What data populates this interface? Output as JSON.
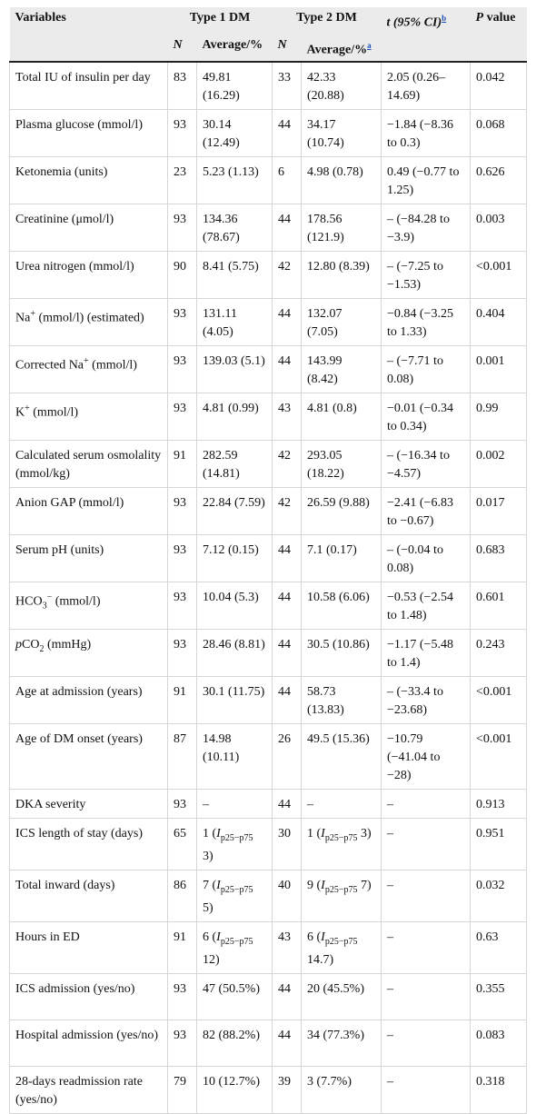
{
  "header": {
    "variables": "Variables",
    "type1": "Type 1 DM",
    "type2": "Type 2 DM",
    "t_label": "t (95% CI)",
    "t_note": "b",
    "p_label": "P value",
    "n1": "N",
    "avg1": "Average/%",
    "n2": "N",
    "avg2": "Average/%",
    "avg2_note": "a"
  },
  "rows": [
    {
      "v": "Total IU of insulin per day",
      "n1": "83",
      "a1": "49.81 (16.29)",
      "n2": "33",
      "a2": "42.33 (20.88)",
      "t": "2.05 (0.26–14.69)",
      "p": "0.042"
    },
    {
      "v": "Plasma glucose (mmol/l)",
      "n1": "93",
      "a1": "30.14 (12.49)",
      "n2": "44",
      "a2": "34.17 (10.74)",
      "t": "−1.84 (−8.36 to 0.3)",
      "p": "0.068"
    },
    {
      "v": "Ketonemia (units)",
      "n1": "23",
      "a1": "5.23 (1.13)",
      "n2": "6",
      "a2": "4.98 (0.78)",
      "t": "0.49 (−0.77 to 1.25)",
      "p": "0.626"
    },
    {
      "v": "Creatinine (μmol/l)",
      "n1": "93",
      "a1": "134.36 (78.67)",
      "n2": "44",
      "a2": "178.56 (121.9)",
      "t": "– (−84.28 to −3.9)",
      "p": "0.003"
    },
    {
      "v": "Urea nitrogen (mmol/l)",
      "n1": "90",
      "a1": "8.41 (5.75)",
      "n2": "42",
      "a2": "12.80 (8.39)",
      "t": "– (−7.25 to −1.53)",
      "p": "<0.001"
    },
    {
      "v_pre": "Na",
      "v_sup": "+",
      "v_post": " (mmol/l) (estimated)",
      "n1": "93",
      "a1": "131.11 (4.05)",
      "n2": "44",
      "a2": "132.07 (7.05)",
      "t": "−0.84 (−3.25 to 1.33)",
      "p": "0.404"
    },
    {
      "v_pre": "Corrected Na",
      "v_sup": "+",
      "v_post": " (mmol/l)",
      "n1": "93",
      "a1": "139.03 (5.1)",
      "n2": "44",
      "a2": "143.99 (8.42)",
      "t": "– (−7.71 to 0.08)",
      "p": "0.001"
    },
    {
      "v_pre": "K",
      "v_sup": "+",
      "v_post": " (mmol/l)",
      "n1": "93",
      "a1": "4.81 (0.99)",
      "n2": "43",
      "a2": "4.81 (0.8)",
      "t": "−0.01 (−0.34 to 0.34)",
      "p": "0.99"
    },
    {
      "v": "Calculated serum osmolality (mmol/kg)",
      "n1": "91",
      "a1": "282.59 (14.81)",
      "n2": "42",
      "a2": "293.05 (18.22)",
      "t": "– (−16.34 to −4.57)",
      "p": "0.002"
    },
    {
      "v": "Anion GAP (mmol/l)",
      "n1": "93",
      "a1": "22.84 (7.59)",
      "n2": "42",
      "a2": "26.59 (9.88)",
      "t": "−2.41 (−6.83 to −0.67)",
      "p": "0.017"
    },
    {
      "v": "Serum pH (units)",
      "n1": "93",
      "a1": "7.12 (0.15)",
      "n2": "44",
      "a2": "7.1 (0.17)",
      "t": "– (−0.04 to 0.08)",
      "p": "0.683"
    },
    {
      "v_pre": "HCO",
      "v_sub": "3",
      "v_sup": "−",
      "v_post": " (mmol/l)",
      "n1": "93",
      "a1": "10.04 (5.3)",
      "n2": "44",
      "a2": "10.58 (6.06)",
      "t": "−0.53 (−2.54 to 1.48)",
      "p": "0.601"
    },
    {
      "v_it": "p",
      "v_pre": "CO",
      "v_sub": "2",
      "v_post": " (mmHg)",
      "n1": "93",
      "a1": "28.46 (8.81)",
      "n2": "44",
      "a2": "30.5 (10.86)",
      "t": "−1.17 (−5.48 to 1.4)",
      "p": "0.243"
    },
    {
      "v": "Age at admission (years)",
      "n1": "91",
      "a1": "30.1 (11.75)",
      "n2": "44",
      "a2": "58.73 (13.83)",
      "t": "– (−33.4 to −23.68)",
      "p": "<0.001"
    },
    {
      "v": "Age of DM onset (years)",
      "n1": "87",
      "a1": "14.98 (10.11)",
      "n2": "26",
      "a2": "49.5 (15.36)",
      "t": "−10.79 (−41.04 to −28)",
      "p": "<0.001"
    },
    {
      "v": "DKA severity",
      "n1": "93",
      "a1": "–",
      "n2": "44",
      "a2": "–",
      "t": "–",
      "p": "0.913"
    },
    {
      "v": "ICS length of stay (days)",
      "n1": "65",
      "a1_pre": "1 (",
      "a1_it": "I",
      "a1_sub": "p25−p75",
      "a1_post": " 3)",
      "n2": "30",
      "a2_pre": "1 (",
      "a2_it": "I",
      "a2_sub": "p25−p75",
      "a2_post": " 3)",
      "t": "–",
      "p": "0.951"
    },
    {
      "v": "Total inward (days)",
      "n1": "86",
      "a1_pre": "7 (",
      "a1_it": "I",
      "a1_sub": "p25−p75",
      "a1_post": " 5)",
      "n2": "40",
      "a2_pre": "9 (",
      "a2_it": "I",
      "a2_sub": "p25−p75",
      "a2_post": " 7)",
      "t": "–",
      "p": "0.032"
    },
    {
      "v": "Hours in ED",
      "n1": "91",
      "a1_pre": "6 (",
      "a1_it": "I",
      "a1_sub": "p25−p75",
      "a1_post": " 12)",
      "n2": "43",
      "a2_pre": "6 (",
      "a2_it": "I",
      "a2_sub": "p25−p75",
      "a2_post": " 14.7)",
      "t": "–",
      "p": "0.63"
    },
    {
      "v": "ICS admission (yes/no)",
      "n1": "93",
      "a1": "47 (50.5%)",
      "n2": "44",
      "a2": "20 (45.5%)",
      "t": "–",
      "p": "0.355"
    },
    {
      "v": "Hospital admission (yes/no)",
      "n1": "93",
      "a1": "82 (88.2%)",
      "n2": "44",
      "a2": "34 (77.3%)",
      "t": "–",
      "p": "0.083"
    },
    {
      "v": "28-days readmission rate (yes/no)",
      "n1": "79",
      "a1": "10 (12.7%)",
      "n2": "39",
      "a2": "3 (7.7%)",
      "t": "–",
      "p": "0.318"
    }
  ]
}
